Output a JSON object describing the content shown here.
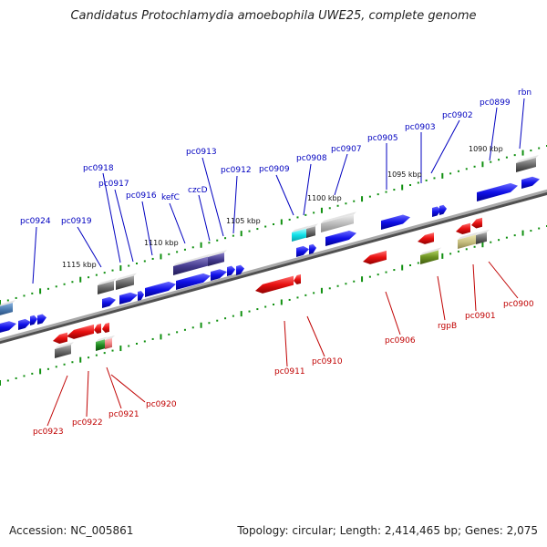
{
  "title": "Candidatus Protochlamydia amoebophila UWE25, complete genome",
  "accession_text": "Accession: NC_005861",
  "summary_text": "Topology: circular; Length: 2,414,465 bp; Genes: 2,075",
  "colors": {
    "forward_gene": "#1010e0",
    "reverse_gene": "#e01010",
    "leader_forward": "#0000c0",
    "leader_reverse": "#c00000",
    "backbone": "#808080",
    "tick_green": "#109010"
  },
  "scale_labels": [
    "1090 kbp",
    "1095 kbp",
    "1100 kbp",
    "1105 kbp",
    "1110 kbp",
    "1115 kbp"
  ],
  "forward_labels": [
    "rbn",
    "pc0899",
    "pc0902",
    "pc0903",
    "pc0905",
    "pc0907",
    "pc0908",
    "pc0909",
    "pc0913",
    "pc0912",
    "czcD",
    "kefC",
    "pc0916",
    "pc0917",
    "pc0918",
    "pc0919",
    "pc0924"
  ],
  "reverse_labels": [
    "pc0900",
    "pc0901",
    "rgpB",
    "pc0906",
    "pc0910",
    "pc0911",
    "pc0920",
    "pc0921",
    "pc0922",
    "pc0923"
  ]
}
